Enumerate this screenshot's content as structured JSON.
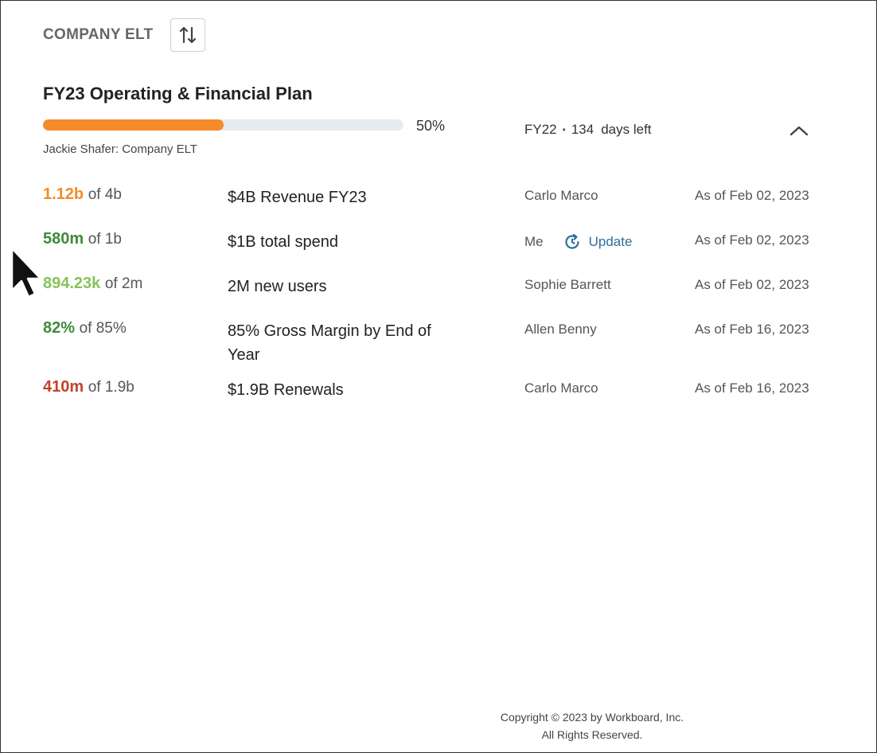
{
  "header": {
    "team_title": "COMPANY ELT",
    "sort_icon": "sort-arrows-icon"
  },
  "plan": {
    "title": "FY23 Operating & Financial Plan",
    "progress": 0.5,
    "progress_label": "50%",
    "owner_line": "Jackie Shafer: Company ELT",
    "period": "FY22",
    "days_left": "134",
    "days_left_label": "days left",
    "collapse_icon": "chevron-up-icon"
  },
  "colors": {
    "progress_fill": "#f58b2b",
    "progress_track": "#e6ebf0",
    "orange": "#f58b2b",
    "green_dark": "#3f8a3a",
    "green_light": "#86c45a",
    "red": "#c0442a",
    "link": "#2e6f9a"
  },
  "key_results": [
    {
      "current": "1.12b",
      "target": "of 4b",
      "name": "$4B Revenue FY23",
      "owner": "Carlo Marco",
      "date": "As of Feb 02, 2023",
      "color": "#f58b2b"
    },
    {
      "current": "580m",
      "target": "of 1b",
      "name": "$1B total spend",
      "owner": "Me",
      "action": "Update",
      "date": "As of Feb 02, 2023",
      "color": "#3f8a3a"
    },
    {
      "current": "894.23k",
      "target": "of 2m",
      "name": "2M new users",
      "owner": "Sophie Barrett",
      "date": "As of Feb 02, 2023",
      "color": "#86c45a"
    },
    {
      "current": "82%",
      "target": "of 85%",
      "name": "85% Gross Margin by End of Year",
      "owner": "Allen Benny",
      "date": "As of Feb 16, 2023",
      "color": "#3f8a3a"
    },
    {
      "current": "410m",
      "target": "of 1.9b",
      "name": "$1.9B Renewals",
      "owner": "Carlo Marco",
      "date": "As of Feb 16, 2023",
      "color": "#c0442a"
    }
  ],
  "footer": {
    "line1": "Copyright © 2023 by Workboard, Inc.",
    "line2": "All Rights Reserved."
  }
}
